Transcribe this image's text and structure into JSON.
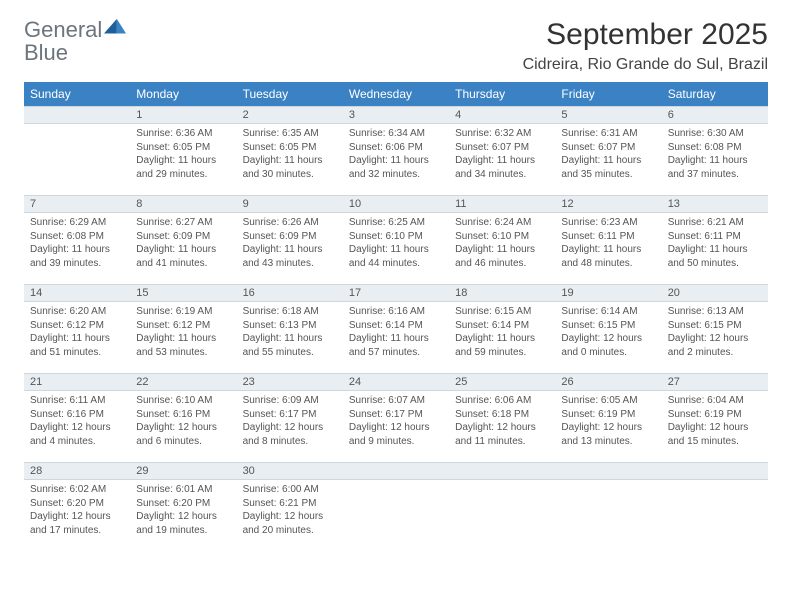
{
  "logo": {
    "main": "General",
    "sub": "Blue"
  },
  "title": "September 2025",
  "subtitle": "Cidreira, Rio Grande do Sul, Brazil",
  "colors": {
    "header_bg": "#3b82c4",
    "header_fg": "#ffffff",
    "daynum_bg": "#e9eef2",
    "daynum_border": "#cfd6dc",
    "body_text": "#555555",
    "logo_gray": "#6c757d",
    "logo_blue": "#3b82c4"
  },
  "typography": {
    "title_fontsize": 30,
    "subtitle_fontsize": 16,
    "th_fontsize": 12,
    "cell_fontsize": 10
  },
  "day_headers": [
    "Sunday",
    "Monday",
    "Tuesday",
    "Wednesday",
    "Thursday",
    "Friday",
    "Saturday"
  ],
  "weeks": [
    [
      null,
      {
        "n": "1",
        "sr": "Sunrise: 6:36 AM",
        "ss": "Sunset: 6:05 PM",
        "d1": "Daylight: 11 hours",
        "d2": "and 29 minutes."
      },
      {
        "n": "2",
        "sr": "Sunrise: 6:35 AM",
        "ss": "Sunset: 6:05 PM",
        "d1": "Daylight: 11 hours",
        "d2": "and 30 minutes."
      },
      {
        "n": "3",
        "sr": "Sunrise: 6:34 AM",
        "ss": "Sunset: 6:06 PM",
        "d1": "Daylight: 11 hours",
        "d2": "and 32 minutes."
      },
      {
        "n": "4",
        "sr": "Sunrise: 6:32 AM",
        "ss": "Sunset: 6:07 PM",
        "d1": "Daylight: 11 hours",
        "d2": "and 34 minutes."
      },
      {
        "n": "5",
        "sr": "Sunrise: 6:31 AM",
        "ss": "Sunset: 6:07 PM",
        "d1": "Daylight: 11 hours",
        "d2": "and 35 minutes."
      },
      {
        "n": "6",
        "sr": "Sunrise: 6:30 AM",
        "ss": "Sunset: 6:08 PM",
        "d1": "Daylight: 11 hours",
        "d2": "and 37 minutes."
      }
    ],
    [
      {
        "n": "7",
        "sr": "Sunrise: 6:29 AM",
        "ss": "Sunset: 6:08 PM",
        "d1": "Daylight: 11 hours",
        "d2": "and 39 minutes."
      },
      {
        "n": "8",
        "sr": "Sunrise: 6:27 AM",
        "ss": "Sunset: 6:09 PM",
        "d1": "Daylight: 11 hours",
        "d2": "and 41 minutes."
      },
      {
        "n": "9",
        "sr": "Sunrise: 6:26 AM",
        "ss": "Sunset: 6:09 PM",
        "d1": "Daylight: 11 hours",
        "d2": "and 43 minutes."
      },
      {
        "n": "10",
        "sr": "Sunrise: 6:25 AM",
        "ss": "Sunset: 6:10 PM",
        "d1": "Daylight: 11 hours",
        "d2": "and 44 minutes."
      },
      {
        "n": "11",
        "sr": "Sunrise: 6:24 AM",
        "ss": "Sunset: 6:10 PM",
        "d1": "Daylight: 11 hours",
        "d2": "and 46 minutes."
      },
      {
        "n": "12",
        "sr": "Sunrise: 6:23 AM",
        "ss": "Sunset: 6:11 PM",
        "d1": "Daylight: 11 hours",
        "d2": "and 48 minutes."
      },
      {
        "n": "13",
        "sr": "Sunrise: 6:21 AM",
        "ss": "Sunset: 6:11 PM",
        "d1": "Daylight: 11 hours",
        "d2": "and 50 minutes."
      }
    ],
    [
      {
        "n": "14",
        "sr": "Sunrise: 6:20 AM",
        "ss": "Sunset: 6:12 PM",
        "d1": "Daylight: 11 hours",
        "d2": "and 51 minutes."
      },
      {
        "n": "15",
        "sr": "Sunrise: 6:19 AM",
        "ss": "Sunset: 6:12 PM",
        "d1": "Daylight: 11 hours",
        "d2": "and 53 minutes."
      },
      {
        "n": "16",
        "sr": "Sunrise: 6:18 AM",
        "ss": "Sunset: 6:13 PM",
        "d1": "Daylight: 11 hours",
        "d2": "and 55 minutes."
      },
      {
        "n": "17",
        "sr": "Sunrise: 6:16 AM",
        "ss": "Sunset: 6:14 PM",
        "d1": "Daylight: 11 hours",
        "d2": "and 57 minutes."
      },
      {
        "n": "18",
        "sr": "Sunrise: 6:15 AM",
        "ss": "Sunset: 6:14 PM",
        "d1": "Daylight: 11 hours",
        "d2": "and 59 minutes."
      },
      {
        "n": "19",
        "sr": "Sunrise: 6:14 AM",
        "ss": "Sunset: 6:15 PM",
        "d1": "Daylight: 12 hours",
        "d2": "and 0 minutes."
      },
      {
        "n": "20",
        "sr": "Sunrise: 6:13 AM",
        "ss": "Sunset: 6:15 PM",
        "d1": "Daylight: 12 hours",
        "d2": "and 2 minutes."
      }
    ],
    [
      {
        "n": "21",
        "sr": "Sunrise: 6:11 AM",
        "ss": "Sunset: 6:16 PM",
        "d1": "Daylight: 12 hours",
        "d2": "and 4 minutes."
      },
      {
        "n": "22",
        "sr": "Sunrise: 6:10 AM",
        "ss": "Sunset: 6:16 PM",
        "d1": "Daylight: 12 hours",
        "d2": "and 6 minutes."
      },
      {
        "n": "23",
        "sr": "Sunrise: 6:09 AM",
        "ss": "Sunset: 6:17 PM",
        "d1": "Daylight: 12 hours",
        "d2": "and 8 minutes."
      },
      {
        "n": "24",
        "sr": "Sunrise: 6:07 AM",
        "ss": "Sunset: 6:17 PM",
        "d1": "Daylight: 12 hours",
        "d2": "and 9 minutes."
      },
      {
        "n": "25",
        "sr": "Sunrise: 6:06 AM",
        "ss": "Sunset: 6:18 PM",
        "d1": "Daylight: 12 hours",
        "d2": "and 11 minutes."
      },
      {
        "n": "26",
        "sr": "Sunrise: 6:05 AM",
        "ss": "Sunset: 6:19 PM",
        "d1": "Daylight: 12 hours",
        "d2": "and 13 minutes."
      },
      {
        "n": "27",
        "sr": "Sunrise: 6:04 AM",
        "ss": "Sunset: 6:19 PM",
        "d1": "Daylight: 12 hours",
        "d2": "and 15 minutes."
      }
    ],
    [
      {
        "n": "28",
        "sr": "Sunrise: 6:02 AM",
        "ss": "Sunset: 6:20 PM",
        "d1": "Daylight: 12 hours",
        "d2": "and 17 minutes."
      },
      {
        "n": "29",
        "sr": "Sunrise: 6:01 AM",
        "ss": "Sunset: 6:20 PM",
        "d1": "Daylight: 12 hours",
        "d2": "and 19 minutes."
      },
      {
        "n": "30",
        "sr": "Sunrise: 6:00 AM",
        "ss": "Sunset: 6:21 PM",
        "d1": "Daylight: 12 hours",
        "d2": "and 20 minutes."
      },
      null,
      null,
      null,
      null
    ]
  ]
}
